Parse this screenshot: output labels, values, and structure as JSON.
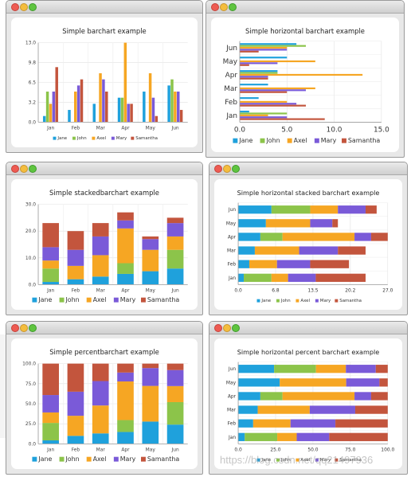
{
  "series_colors": [
    "#1fa1dc",
    "#8cc44a",
    "#f6a623",
    "#7a5ad8",
    "#c3553d"
  ],
  "watermark": "https://blog.csdn.net/qq21497936",
  "charts": [
    {
      "id": "bar",
      "type": "bar",
      "title": "Simple barchart example",
      "categories": [
        "Jan",
        "Feb",
        "Mar",
        "Apr",
        "May",
        "Jun"
      ],
      "ylim": [
        0,
        13
      ],
      "ticks": [
        "0.0",
        "3.2",
        "6.5",
        "9.8",
        "13.0"
      ],
      "series": [
        {
          "name": "Jane",
          "values": [
            1,
            2,
            3,
            4,
            5,
            6
          ]
        },
        {
          "name": "John",
          "values": [
            5,
            0,
            0,
            4,
            0,
            7
          ]
        },
        {
          "name": "Axel",
          "values": [
            3,
            5,
            8,
            13,
            8,
            5
          ]
        },
        {
          "name": "Mary",
          "values": [
            5,
            6,
            7,
            3,
            4,
            5
          ]
        },
        {
          "name": "Samantha",
          "values": [
            9,
            7,
            5,
            3,
            1,
            2
          ]
        }
      ]
    },
    {
      "id": "hbar",
      "type": "horizontal-bar",
      "title": "Simple horizontal barchart example",
      "categories": [
        "Jan",
        "Feb",
        "Mar",
        "Apr",
        "May",
        "Jun"
      ],
      "xlim": [
        0,
        15
      ],
      "ticks": [
        "0.0",
        "5.0",
        "10.0",
        "15.0"
      ],
      "series": [
        {
          "name": "Jane",
          "values": [
            1,
            2,
            3,
            4,
            5,
            6
          ]
        },
        {
          "name": "John",
          "values": [
            5,
            0,
            0,
            4,
            0,
            7
          ]
        },
        {
          "name": "Axel",
          "values": [
            3,
            5,
            8,
            13,
            8,
            5
          ]
        },
        {
          "name": "Mary",
          "values": [
            5,
            6,
            7,
            3,
            4,
            5
          ]
        },
        {
          "name": "Samantha",
          "values": [
            9,
            7,
            5,
            3,
            1,
            2
          ]
        }
      ]
    },
    {
      "id": "stacked",
      "type": "stacked-bar",
      "title": "Simple stackedbarchart example",
      "categories": [
        "Jan",
        "Feb",
        "Mar",
        "Apr",
        "May",
        "Jun"
      ],
      "ylim": [
        0,
        30
      ],
      "ticks": [
        "0.0",
        "10.0",
        "20.0",
        "30.0"
      ],
      "series": [
        {
          "name": "Jane",
          "values": [
            1,
            2,
            3,
            4,
            5,
            6
          ]
        },
        {
          "name": "John",
          "values": [
            5,
            0,
            0,
            4,
            0,
            7
          ]
        },
        {
          "name": "Axel",
          "values": [
            3,
            5,
            8,
            13,
            8,
            5
          ]
        },
        {
          "name": "Mary",
          "values": [
            5,
            6,
            7,
            3,
            4,
            5
          ]
        },
        {
          "name": "Samantha",
          "values": [
            9,
            7,
            5,
            3,
            1,
            2
          ]
        }
      ]
    },
    {
      "id": "hstacked",
      "type": "horizontal-stacked-bar",
      "title": "Simple horizontal stacked barchart example",
      "categories": [
        "Jan",
        "Feb",
        "Mar",
        "Apr",
        "May",
        "Jun"
      ],
      "xlim": [
        0,
        27
      ],
      "ticks": [
        "0.0",
        "6.8",
        "13.5",
        "20.2",
        "27.0"
      ],
      "series": [
        {
          "name": "Jane",
          "values": [
            1,
            2,
            3,
            4,
            5,
            6
          ]
        },
        {
          "name": "John",
          "values": [
            5,
            0,
            0,
            4,
            0,
            7
          ]
        },
        {
          "name": "Axel",
          "values": [
            3,
            5,
            8,
            13,
            8,
            5
          ]
        },
        {
          "name": "Mary",
          "values": [
            5,
            6,
            7,
            3,
            4,
            5
          ]
        },
        {
          "name": "Samantha",
          "values": [
            9,
            7,
            5,
            3,
            1,
            2
          ]
        }
      ]
    },
    {
      "id": "percent",
      "type": "percent-bar",
      "title": "Simple percentbarchart example",
      "categories": [
        "Jan",
        "Feb",
        "Mar",
        "Apr",
        "May",
        "Jun"
      ],
      "ylim": [
        0,
        100
      ],
      "ticks": [
        "0.0",
        "25.0",
        "50.0",
        "75.0",
        "100.0"
      ],
      "series": [
        {
          "name": "Jane",
          "values": [
            1,
            2,
            3,
            4,
            5,
            6
          ]
        },
        {
          "name": "John",
          "values": [
            5,
            0,
            0,
            4,
            0,
            7
          ]
        },
        {
          "name": "Axel",
          "values": [
            3,
            5,
            8,
            13,
            8,
            5
          ]
        },
        {
          "name": "Mary",
          "values": [
            5,
            6,
            7,
            3,
            4,
            5
          ]
        },
        {
          "name": "Samantha",
          "values": [
            9,
            7,
            5,
            3,
            1,
            2
          ]
        }
      ]
    },
    {
      "id": "hpercent",
      "type": "horizontal-percent-bar",
      "title": "Simple horizontal percent barchart example",
      "categories": [
        "Jan",
        "Feb",
        "Mar",
        "Apr",
        "May",
        "Jun"
      ],
      "xlim": [
        0,
        100
      ],
      "ticks": [
        "0.0",
        "25.0",
        "50.0",
        "75.0",
        "100.0"
      ],
      "series": [
        {
          "name": "Jane",
          "values": [
            1,
            2,
            3,
            4,
            5,
            6
          ]
        },
        {
          "name": "John",
          "values": [
            5,
            0,
            0,
            4,
            0,
            7
          ]
        },
        {
          "name": "Axel",
          "values": [
            3,
            5,
            8,
            13,
            8,
            5
          ]
        },
        {
          "name": "Mary",
          "values": [
            5,
            6,
            7,
            3,
            4,
            5
          ]
        },
        {
          "name": "Samantha",
          "values": [
            9,
            7,
            5,
            3,
            1,
            2
          ]
        }
      ]
    }
  ],
  "chart_data": [
    {
      "type": "bar",
      "title": "Simple barchart example",
      "categories": [
        "Jan",
        "Feb",
        "Mar",
        "Apr",
        "May",
        "Jun"
      ],
      "ylim": [
        0,
        13
      ],
      "legend": "bottom",
      "series": [
        {
          "name": "Jane",
          "values": [
            1,
            2,
            3,
            4,
            5,
            6
          ]
        },
        {
          "name": "John",
          "values": [
            5,
            0,
            0,
            4,
            0,
            7
          ]
        },
        {
          "name": "Axel",
          "values": [
            3,
            5,
            8,
            13,
            8,
            5
          ]
        },
        {
          "name": "Mary",
          "values": [
            5,
            6,
            7,
            3,
            4,
            5
          ]
        },
        {
          "name": "Samantha",
          "values": [
            9,
            7,
            5,
            3,
            1,
            2
          ]
        }
      ]
    },
    {
      "type": "bar",
      "orientation": "horizontal",
      "title": "Simple horizontal barchart example",
      "categories": [
        "Jan",
        "Feb",
        "Mar",
        "Apr",
        "May",
        "Jun"
      ],
      "xlim": [
        0,
        15
      ],
      "legend": "bottom",
      "series": [
        {
          "name": "Jane",
          "values": [
            1,
            2,
            3,
            4,
            5,
            6
          ]
        },
        {
          "name": "John",
          "values": [
            5,
            0,
            0,
            4,
            0,
            7
          ]
        },
        {
          "name": "Axel",
          "values": [
            3,
            5,
            8,
            13,
            8,
            5
          ]
        },
        {
          "name": "Mary",
          "values": [
            5,
            6,
            7,
            3,
            4,
            5
          ]
        },
        {
          "name": "Samantha",
          "values": [
            9,
            7,
            5,
            3,
            1,
            2
          ]
        }
      ]
    },
    {
      "type": "bar",
      "stacked": true,
      "title": "Simple stackedbarchart example",
      "categories": [
        "Jan",
        "Feb",
        "Mar",
        "Apr",
        "May",
        "Jun"
      ],
      "ylim": [
        0,
        30
      ],
      "legend": "bottom",
      "series": [
        {
          "name": "Jane",
          "values": [
            1,
            2,
            3,
            4,
            5,
            6
          ]
        },
        {
          "name": "John",
          "values": [
            5,
            0,
            0,
            4,
            0,
            7
          ]
        },
        {
          "name": "Axel",
          "values": [
            3,
            5,
            8,
            13,
            8,
            5
          ]
        },
        {
          "name": "Mary",
          "values": [
            5,
            6,
            7,
            3,
            4,
            5
          ]
        },
        {
          "name": "Samantha",
          "values": [
            9,
            7,
            5,
            3,
            1,
            2
          ]
        }
      ]
    },
    {
      "type": "bar",
      "stacked": true,
      "orientation": "horizontal",
      "title": "Simple horizontal stacked barchart example",
      "categories": [
        "Jan",
        "Feb",
        "Mar",
        "Apr",
        "May",
        "Jun"
      ],
      "xlim": [
        0,
        27
      ],
      "legend": "bottom",
      "series": [
        {
          "name": "Jane",
          "values": [
            1,
            2,
            3,
            4,
            5,
            6
          ]
        },
        {
          "name": "John",
          "values": [
            5,
            0,
            0,
            4,
            0,
            7
          ]
        },
        {
          "name": "Axel",
          "values": [
            3,
            5,
            8,
            13,
            8,
            5
          ]
        },
        {
          "name": "Mary",
          "values": [
            5,
            6,
            7,
            3,
            4,
            5
          ]
        },
        {
          "name": "Samantha",
          "values": [
            9,
            7,
            5,
            3,
            1,
            2
          ]
        }
      ]
    },
    {
      "type": "bar",
      "percent": true,
      "title": "Simple percentbarchart example",
      "categories": [
        "Jan",
        "Feb",
        "Mar",
        "Apr",
        "May",
        "Jun"
      ],
      "ylim": [
        0,
        100
      ],
      "legend": "bottom",
      "series": [
        {
          "name": "Jane",
          "values": [
            1,
            2,
            3,
            4,
            5,
            6
          ]
        },
        {
          "name": "John",
          "values": [
            5,
            0,
            0,
            4,
            0,
            7
          ]
        },
        {
          "name": "Axel",
          "values": [
            3,
            5,
            8,
            13,
            8,
            5
          ]
        },
        {
          "name": "Mary",
          "values": [
            5,
            6,
            7,
            3,
            4,
            5
          ]
        },
        {
          "name": "Samantha",
          "values": [
            9,
            7,
            5,
            3,
            1,
            2
          ]
        }
      ]
    },
    {
      "type": "bar",
      "percent": true,
      "orientation": "horizontal",
      "title": "Simple horizontal percent barchart example",
      "categories": [
        "Jan",
        "Feb",
        "Mar",
        "Apr",
        "May",
        "Jun"
      ],
      "xlim": [
        0,
        100
      ],
      "legend": "bottom",
      "series": [
        {
          "name": "Jane",
          "values": [
            1,
            2,
            3,
            4,
            5,
            6
          ]
        },
        {
          "name": "John",
          "values": [
            5,
            0,
            0,
            4,
            0,
            7
          ]
        },
        {
          "name": "Axel",
          "values": [
            3,
            5,
            8,
            13,
            8,
            5
          ]
        },
        {
          "name": "Mary",
          "values": [
            5,
            6,
            7,
            3,
            4,
            5
          ]
        },
        {
          "name": "Samantha",
          "values": [
            9,
            7,
            5,
            3,
            1,
            2
          ]
        }
      ]
    }
  ]
}
